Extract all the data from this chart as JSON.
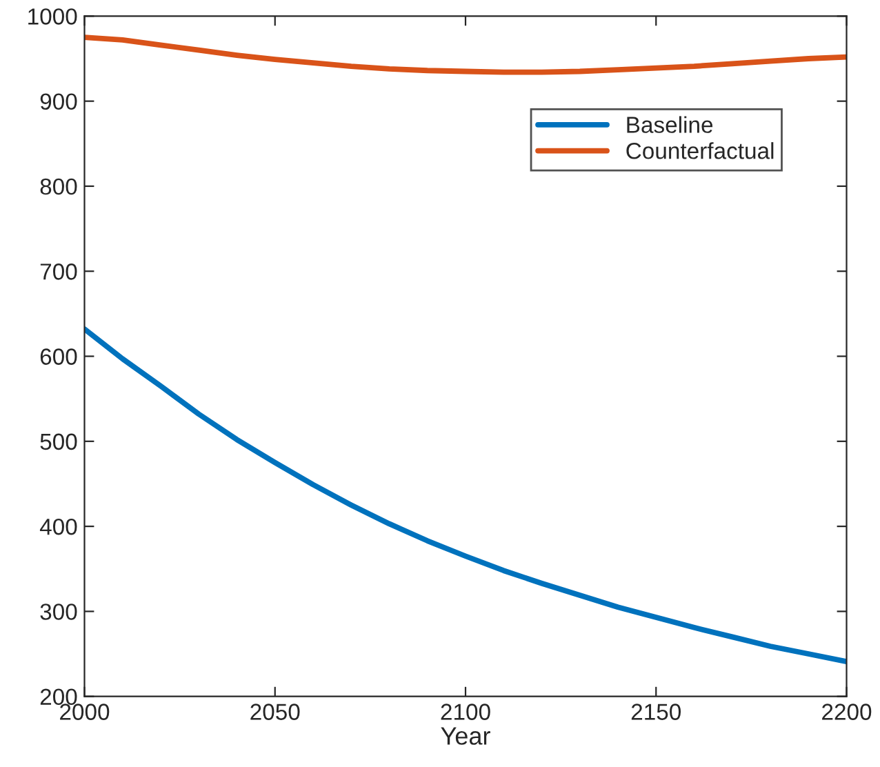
{
  "chart_data": {
    "type": "line",
    "xlabel": "Year",
    "x": [
      2000,
      2010,
      2020,
      2030,
      2040,
      2050,
      2060,
      2070,
      2080,
      2090,
      2100,
      2110,
      2120,
      2130,
      2140,
      2150,
      2160,
      2170,
      2180,
      2190,
      2200
    ],
    "series": [
      {
        "name": "Baseline",
        "color": "#0072bd",
        "values": [
          632,
          597,
          565,
          532,
          502,
          475,
          449,
          425,
          403,
          383,
          365,
          348,
          333,
          319,
          305,
          293,
          281,
          270,
          259,
          250,
          241
        ]
      },
      {
        "name": "Counterfactual",
        "color": "#d95319",
        "values": [
          975,
          972,
          966,
          960,
          954,
          949,
          945,
          941,
          938,
          936,
          935,
          934,
          934,
          935,
          937,
          939,
          941,
          944,
          947,
          950,
          952
        ]
      }
    ],
    "xlim": [
      2000,
      2200
    ],
    "xticks": [
      2000,
      2050,
      2100,
      2150,
      2200
    ],
    "ylim": [
      200,
      1000
    ],
    "yticks": [
      200,
      300,
      400,
      500,
      600,
      700,
      800,
      900,
      1000
    ],
    "grid": false,
    "legend": "top right",
    "line_style": "solid",
    "marker": "none"
  }
}
